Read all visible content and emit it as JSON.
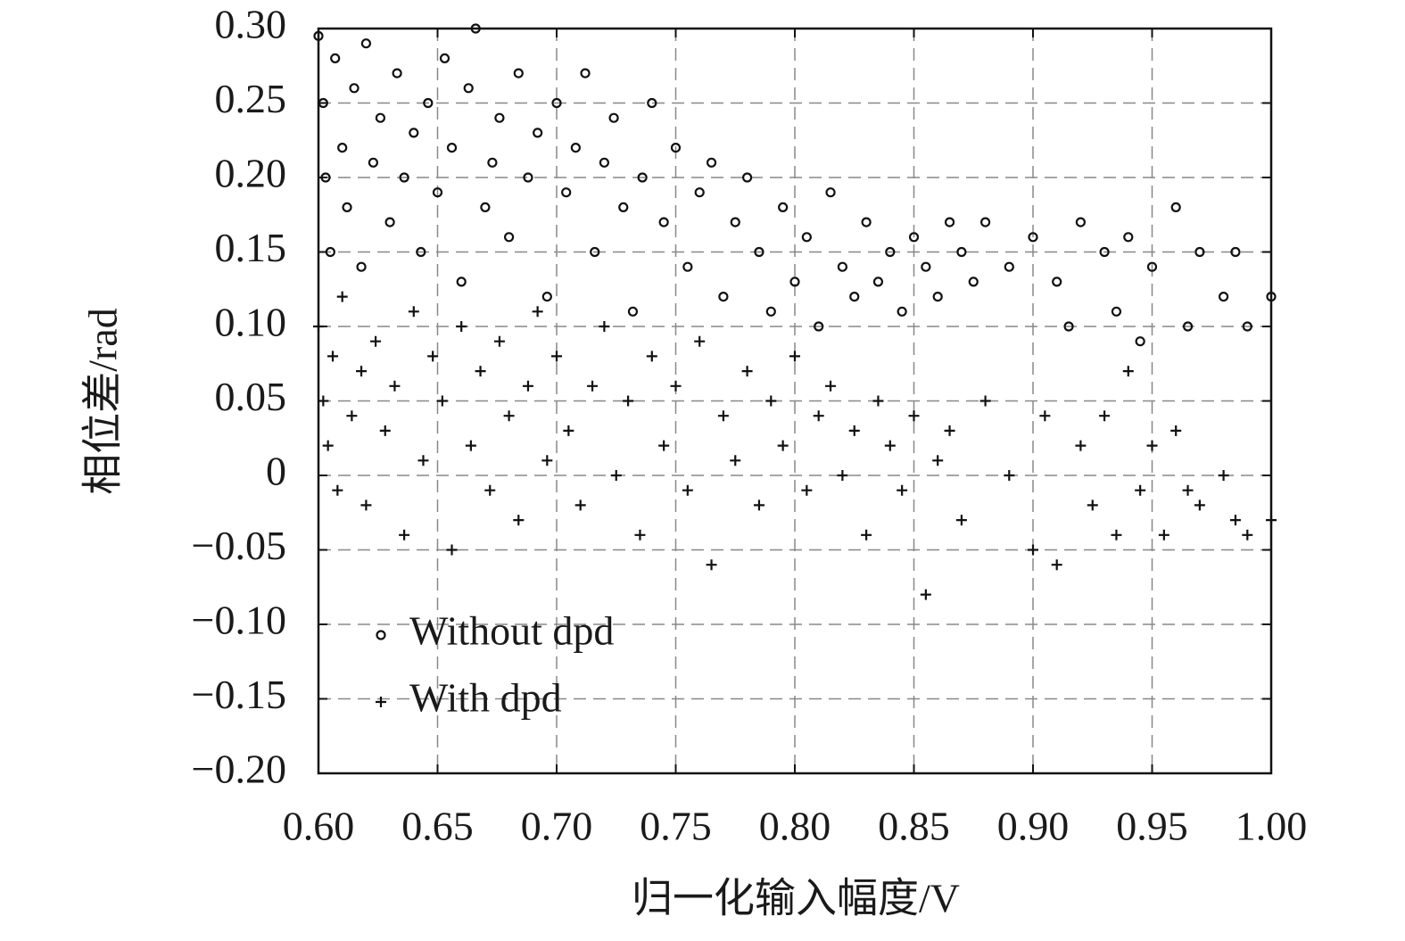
{
  "chart_data": {
    "type": "scatter",
    "x_label": "归一化输入幅度/V",
    "y_label": "相位差/rad",
    "xlim": [
      0.6,
      1.0
    ],
    "ylim": [
      -0.2,
      0.3
    ],
    "xticks": [
      {
        "value": 0.6,
        "label": "0.60"
      },
      {
        "value": 0.65,
        "label": "0.65"
      },
      {
        "value": 0.7,
        "label": "0.70"
      },
      {
        "value": 0.75,
        "label": "0.75"
      },
      {
        "value": 0.8,
        "label": "0.80"
      },
      {
        "value": 0.85,
        "label": "0.85"
      },
      {
        "value": 0.9,
        "label": "0.90"
      },
      {
        "value": 0.95,
        "label": "0.95"
      },
      {
        "value": 1.0,
        "label": "1.00"
      }
    ],
    "yticks": [
      {
        "value": -0.2,
        "label": "−0.20"
      },
      {
        "value": -0.15,
        "label": "−0.15"
      },
      {
        "value": -0.1,
        "label": "−0.10"
      },
      {
        "value": -0.05,
        "label": "−0.05"
      },
      0,
      {
        "value": 0.05,
        "label": "0.05"
      },
      {
        "value": 0.1,
        "label": "0.10"
      },
      {
        "value": 0.15,
        "label": "0.15"
      },
      {
        "value": 0.2,
        "label": "0.20"
      },
      {
        "value": 0.25,
        "label": "0.25"
      },
      {
        "value": 0.3,
        "label": "0.30"
      }
    ],
    "grid": true,
    "legend": "lower-left",
    "series": [
      {
        "name": "Without dpd",
        "marker": "circle",
        "color": "#111111",
        "x": [
          0.6,
          0.602,
          0.603,
          0.605,
          0.607,
          0.61,
          0.612,
          0.615,
          0.618,
          0.62,
          0.623,
          0.626,
          0.63,
          0.633,
          0.636,
          0.64,
          0.643,
          0.646,
          0.65,
          0.653,
          0.656,
          0.66,
          0.663,
          0.666,
          0.67,
          0.673,
          0.676,
          0.68,
          0.684,
          0.688,
          0.692,
          0.696,
          0.7,
          0.704,
          0.708,
          0.712,
          0.716,
          0.72,
          0.724,
          0.728,
          0.732,
          0.736,
          0.74,
          0.745,
          0.75,
          0.755,
          0.76,
          0.765,
          0.77,
          0.775,
          0.78,
          0.785,
          0.79,
          0.795,
          0.8,
          0.805,
          0.81,
          0.815,
          0.82,
          0.825,
          0.83,
          0.835,
          0.84,
          0.845,
          0.85,
          0.855,
          0.86,
          0.865,
          0.87,
          0.875,
          0.88,
          0.89,
          0.9,
          0.91,
          0.915,
          0.92,
          0.93,
          0.935,
          0.94,
          0.945,
          0.95,
          0.96,
          0.965,
          0.97,
          0.98,
          0.985,
          0.99,
          1.0
        ],
        "values": [
          0.295,
          0.25,
          0.2,
          0.15,
          0.28,
          0.22,
          0.18,
          0.26,
          0.14,
          0.29,
          0.21,
          0.24,
          0.17,
          0.27,
          0.2,
          0.23,
          0.15,
          0.25,
          0.19,
          0.28,
          0.22,
          0.13,
          0.26,
          0.3,
          0.18,
          0.21,
          0.24,
          0.16,
          0.27,
          0.2,
          0.23,
          0.12,
          0.25,
          0.19,
          0.22,
          0.27,
          0.15,
          0.21,
          0.24,
          0.18,
          0.11,
          0.2,
          0.25,
          0.17,
          0.22,
          0.14,
          0.19,
          0.21,
          0.12,
          0.17,
          0.2,
          0.15,
          0.11,
          0.18,
          0.13,
          0.16,
          0.1,
          0.19,
          0.14,
          0.12,
          0.17,
          0.13,
          0.15,
          0.11,
          0.16,
          0.14,
          0.12,
          0.17,
          0.15,
          0.13,
          0.17,
          0.14,
          0.16,
          0.13,
          0.1,
          0.17,
          0.15,
          0.11,
          0.16,
          0.09,
          0.14,
          0.18,
          0.1,
          0.15,
          0.12,
          0.15,
          0.1,
          0.12
        ]
      },
      {
        "name": "With dpd",
        "marker": "plus",
        "color": "#111111",
        "x": [
          0.6,
          0.602,
          0.604,
          0.606,
          0.608,
          0.61,
          0.614,
          0.618,
          0.62,
          0.624,
          0.628,
          0.632,
          0.636,
          0.64,
          0.644,
          0.648,
          0.652,
          0.656,
          0.66,
          0.664,
          0.668,
          0.672,
          0.676,
          0.68,
          0.684,
          0.688,
          0.692,
          0.696,
          0.7,
          0.705,
          0.71,
          0.715,
          0.72,
          0.725,
          0.73,
          0.735,
          0.74,
          0.745,
          0.75,
          0.755,
          0.76,
          0.765,
          0.77,
          0.775,
          0.78,
          0.785,
          0.79,
          0.795,
          0.8,
          0.805,
          0.81,
          0.815,
          0.82,
          0.825,
          0.83,
          0.835,
          0.84,
          0.845,
          0.85,
          0.855,
          0.86,
          0.865,
          0.87,
          0.88,
          0.89,
          0.9,
          0.905,
          0.91,
          0.92,
          0.925,
          0.93,
          0.935,
          0.94,
          0.945,
          0.95,
          0.955,
          0.96,
          0.965,
          0.97,
          0.98,
          0.985,
          0.99,
          1.0
        ],
        "values": [
          0.1,
          0.05,
          0.02,
          0.08,
          -0.01,
          0.12,
          0.04,
          0.07,
          -0.02,
          0.09,
          0.03,
          0.06,
          -0.04,
          0.11,
          0.01,
          0.08,
          0.05,
          -0.05,
          0.1,
          0.02,
          0.07,
          -0.01,
          0.09,
          0.04,
          -0.03,
          0.06,
          0.11,
          0.01,
          0.08,
          0.03,
          -0.02,
          0.06,
          0.1,
          0,
          0.05,
          -0.04,
          0.08,
          0.02,
          0.06,
          -0.01,
          0.09,
          -0.06,
          0.04,
          0.01,
          0.07,
          -0.02,
          0.05,
          0.02,
          0.08,
          -0.01,
          0.04,
          0.06,
          0,
          0.03,
          -0.04,
          0.05,
          0.02,
          -0.01,
          0.04,
          -0.08,
          0.01,
          0.03,
          -0.03,
          0.05,
          0,
          -0.05,
          0.04,
          -0.06,
          0.02,
          -0.02,
          0.04,
          -0.04,
          0.07,
          -0.01,
          0.02,
          -0.04,
          0.03,
          -0.01,
          -0.02,
          0,
          -0.03,
          -0.04,
          -0.03
        ]
      }
    ]
  }
}
